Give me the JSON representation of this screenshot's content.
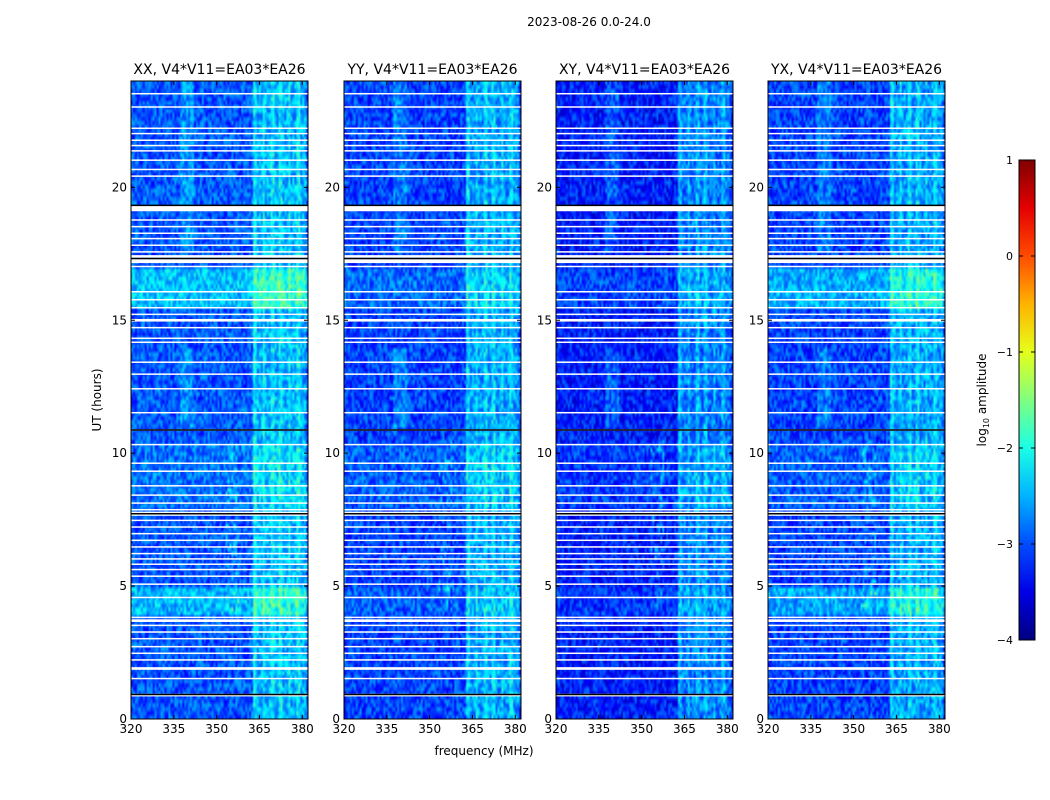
{
  "figure": {
    "suptitle": "2023-08-26 0.0-24.0"
  },
  "chart_data": {
    "type": "heatmap",
    "suptitle": "2023-08-26 0.0-24.0",
    "xlabel": "frequency (MHz)",
    "ylabel": "UT (hours)",
    "xlim": [
      320,
      382
    ],
    "ylim": [
      0,
      24
    ],
    "xticks": [
      320,
      335,
      350,
      365,
      380
    ],
    "yticks": [
      0,
      5,
      10,
      15,
      20
    ],
    "panels": [
      {
        "title": "XX, V4*V11=EA03*EA26",
        "pol": "XX",
        "mean_log_amp": -2.95
      },
      {
        "title": "YY, V4*V11=EA03*EA26",
        "pol": "YY",
        "mean_log_amp": -3.05
      },
      {
        "title": "XY, V4*V11=EA03*EA26",
        "pol": "XY",
        "mean_log_amp": -3.25
      },
      {
        "title": "YX, V4*V11=EA03*EA26",
        "pol": "YX",
        "mean_log_amp": -3.05
      }
    ],
    "colorbar": {
      "label": "log10 amplitude",
      "label_text": "log",
      "label_sub": "10",
      "label_rest": " amplitude",
      "range": [
        -4,
        1
      ],
      "ticks": [
        1,
        0,
        -1,
        -2,
        -3,
        -4
      ],
      "tick_labels": [
        "1",
        "0",
        "−1",
        "−2",
        "−3",
        "−4"
      ],
      "colormap": "jet"
    },
    "flagged_rows_hours": [
      [
        0.85,
        0.95
      ],
      [
        1.5,
        1.55
      ],
      [
        1.85,
        1.95
      ],
      [
        2.2,
        2.25
      ],
      [
        2.45,
        2.5
      ],
      [
        2.7,
        2.75
      ],
      [
        3.0,
        3.05
      ],
      [
        3.25,
        3.3
      ],
      [
        3.5,
        3.55
      ],
      [
        3.65,
        3.75
      ],
      [
        3.8,
        3.85
      ],
      [
        4.55,
        4.6
      ],
      [
        5.05,
        5.1
      ],
      [
        5.35,
        5.4
      ],
      [
        5.6,
        5.65
      ],
      [
        5.8,
        5.85
      ],
      [
        6.0,
        6.05
      ],
      [
        6.2,
        6.25
      ],
      [
        6.45,
        6.5
      ],
      [
        6.7,
        6.75
      ],
      [
        6.95,
        7.0
      ],
      [
        7.2,
        7.25
      ],
      [
        7.45,
        7.5
      ],
      [
        7.65,
        7.7
      ],
      [
        7.75,
        7.8
      ],
      [
        7.85,
        7.9
      ],
      [
        8.1,
        8.15
      ],
      [
        8.4,
        8.45
      ],
      [
        8.75,
        8.8
      ],
      [
        9.3,
        9.35
      ],
      [
        9.6,
        9.65
      ],
      [
        10.3,
        10.35
      ],
      [
        10.85,
        10.9
      ],
      [
        11.5,
        11.55
      ],
      [
        12.4,
        12.45
      ],
      [
        12.95,
        13.0
      ],
      [
        13.4,
        13.45
      ],
      [
        14.15,
        14.2
      ],
      [
        14.3,
        14.35
      ],
      [
        14.7,
        14.75
      ],
      [
        14.95,
        15.05
      ],
      [
        15.2,
        15.25
      ],
      [
        15.45,
        15.5
      ],
      [
        15.75,
        15.8
      ],
      [
        16.05,
        16.1
      ],
      [
        17.0,
        17.05
      ],
      [
        17.15,
        17.3
      ],
      [
        17.35,
        17.45
      ],
      [
        17.55,
        17.6
      ],
      [
        17.8,
        17.85
      ],
      [
        18.05,
        18.1
      ],
      [
        18.25,
        18.3
      ],
      [
        18.5,
        18.55
      ],
      [
        18.75,
        18.8
      ],
      [
        19.1,
        19.3
      ],
      [
        20.4,
        20.45
      ],
      [
        20.65,
        20.7
      ],
      [
        21.0,
        21.05
      ],
      [
        21.35,
        21.4
      ],
      [
        21.55,
        21.6
      ],
      [
        21.75,
        21.8
      ],
      [
        22.0,
        22.05
      ],
      [
        22.2,
        22.25
      ],
      [
        23.0,
        23.05
      ],
      [
        23.5,
        23.55
      ]
    ],
    "black_rows_hours": [
      [
        0.9,
        0.95
      ],
      [
        7.7,
        7.75
      ],
      [
        10.85,
        10.9
      ],
      [
        17.3,
        17.35
      ],
      [
        19.3,
        19.35
      ]
    ]
  }
}
